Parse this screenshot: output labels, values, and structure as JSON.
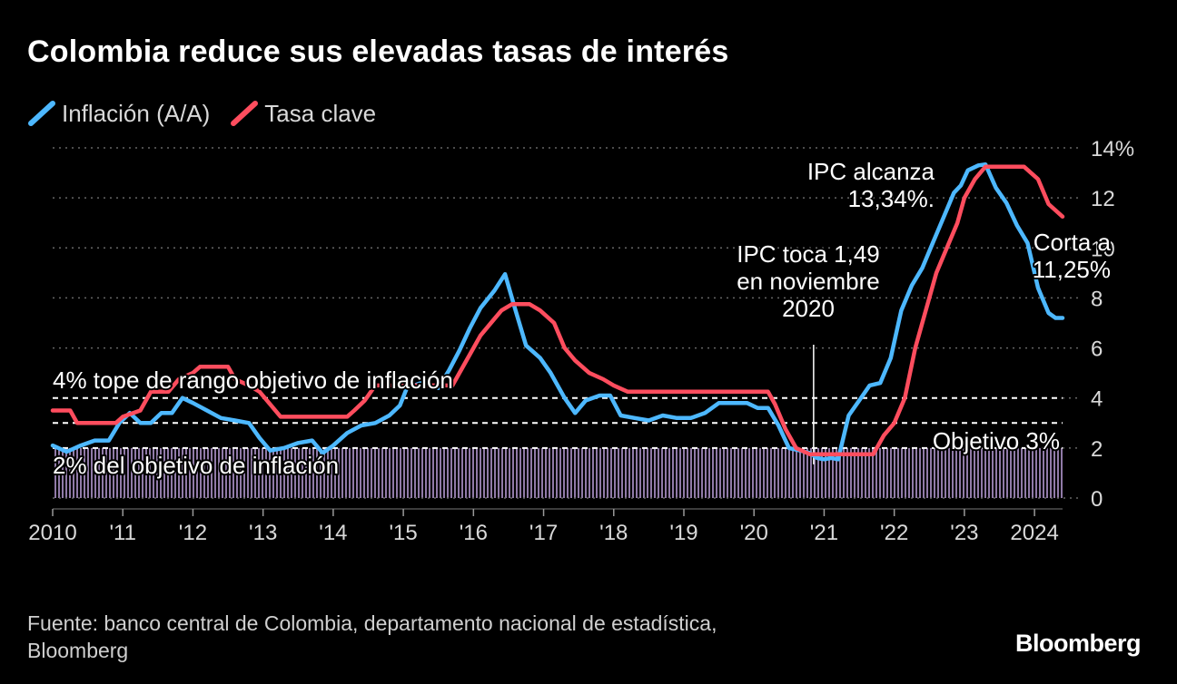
{
  "title": "Colombia reduce sus elevadas tasas de interés",
  "legend": [
    {
      "label": "Inflación (A/A)",
      "color": "#4db8ff"
    },
    {
      "label": "Tasa clave",
      "color": "#ff4d5e"
    }
  ],
  "source_line1": "Fuente: banco central de Colombia, departamento nacional de estadística,",
  "source_line2": "Bloomberg",
  "brand": "Bloomberg",
  "chart_data": {
    "type": "line",
    "title": "Colombia reduce sus elevadas tasas de interés",
    "xlabel": "",
    "ylabel": "",
    "ylim": [
      0,
      14
    ],
    "xlim": [
      2010.0,
      2024.4
    ],
    "y_ticks": [
      0,
      2,
      4,
      6,
      8,
      10,
      12,
      14
    ],
    "y_tick_labels": [
      "0",
      "2",
      "4",
      "6",
      "8",
      "10",
      "12",
      "14%"
    ],
    "x_ticks": [
      2010,
      2011,
      2012,
      2013,
      2014,
      2015,
      2016,
      2017,
      2018,
      2019,
      2020,
      2021,
      2022,
      2023,
      2024
    ],
    "x_tick_labels": [
      "2010",
      "'11",
      "'12",
      "'13",
      "'14",
      "'15",
      "'16",
      "'17",
      "'18",
      "'19",
      "'20",
      "'21",
      "'22",
      "'23",
      "2024"
    ],
    "grid": true,
    "legend_position": "top-left",
    "target_band": [
      2,
      4
    ],
    "target_center": 3,
    "series": [
      {
        "name": "Inflación (A/A)",
        "color": "#4db8ff",
        "points": [
          [
            2010.0,
            2.1
          ],
          [
            2010.2,
            1.85
          ],
          [
            2010.4,
            2.1
          ],
          [
            2010.6,
            2.3
          ],
          [
            2010.8,
            2.3
          ],
          [
            2010.95,
            3.0
          ],
          [
            2011.1,
            3.4
          ],
          [
            2011.25,
            3.0
          ],
          [
            2011.4,
            3.0
          ],
          [
            2011.55,
            3.4
          ],
          [
            2011.7,
            3.4
          ],
          [
            2011.85,
            4.0
          ],
          [
            2012.0,
            3.8
          ],
          [
            2012.2,
            3.5
          ],
          [
            2012.4,
            3.2
          ],
          [
            2012.6,
            3.1
          ],
          [
            2012.8,
            3.0
          ],
          [
            2012.95,
            2.4
          ],
          [
            2013.1,
            1.9
          ],
          [
            2013.3,
            2.0
          ],
          [
            2013.5,
            2.2
          ],
          [
            2013.7,
            2.3
          ],
          [
            2013.85,
            1.8
          ],
          [
            2014.0,
            2.1
          ],
          [
            2014.2,
            2.6
          ],
          [
            2014.4,
            2.9
          ],
          [
            2014.6,
            3.0
          ],
          [
            2014.8,
            3.3
          ],
          [
            2014.95,
            3.7
          ],
          [
            2015.05,
            4.4
          ],
          [
            2015.25,
            4.6
          ],
          [
            2015.5,
            4.4
          ],
          [
            2015.65,
            5.1
          ],
          [
            2015.8,
            5.9
          ],
          [
            2015.95,
            6.8
          ],
          [
            2016.1,
            7.6
          ],
          [
            2016.3,
            8.3
          ],
          [
            2016.45,
            8.95
          ],
          [
            2016.6,
            7.5
          ],
          [
            2016.75,
            6.1
          ],
          [
            2016.95,
            5.6
          ],
          [
            2017.1,
            5.0
          ],
          [
            2017.3,
            4.0
          ],
          [
            2017.45,
            3.4
          ],
          [
            2017.6,
            3.9
          ],
          [
            2017.8,
            4.1
          ],
          [
            2017.95,
            4.1
          ],
          [
            2018.1,
            3.3
          ],
          [
            2018.3,
            3.2
          ],
          [
            2018.5,
            3.1
          ],
          [
            2018.7,
            3.3
          ],
          [
            2018.9,
            3.2
          ],
          [
            2019.1,
            3.2
          ],
          [
            2019.3,
            3.4
          ],
          [
            2019.5,
            3.8
          ],
          [
            2019.7,
            3.8
          ],
          [
            2019.9,
            3.8
          ],
          [
            2020.05,
            3.6
          ],
          [
            2020.2,
            3.6
          ],
          [
            2020.35,
            2.9
          ],
          [
            2020.5,
            2.0
          ],
          [
            2020.65,
            1.9
          ],
          [
            2020.8,
            1.8
          ],
          [
            2020.9,
            1.6
          ],
          [
            2021.0,
            1.55
          ],
          [
            2021.1,
            1.6
          ],
          [
            2021.2,
            1.55
          ],
          [
            2021.35,
            3.3
          ],
          [
            2021.5,
            3.9
          ],
          [
            2021.65,
            4.5
          ],
          [
            2021.8,
            4.6
          ],
          [
            2021.95,
            5.6
          ],
          [
            2022.1,
            7.5
          ],
          [
            2022.25,
            8.5
          ],
          [
            2022.4,
            9.2
          ],
          [
            2022.55,
            10.2
          ],
          [
            2022.7,
            11.2
          ],
          [
            2022.85,
            12.2
          ],
          [
            2022.95,
            12.5
          ],
          [
            2023.05,
            13.1
          ],
          [
            2023.2,
            13.3
          ],
          [
            2023.3,
            13.34
          ],
          [
            2023.45,
            12.4
          ],
          [
            2023.6,
            11.8
          ],
          [
            2023.75,
            10.9
          ],
          [
            2023.9,
            10.2
          ],
          [
            2024.05,
            8.4
          ],
          [
            2024.2,
            7.4
          ],
          [
            2024.3,
            7.2
          ],
          [
            2024.4,
            7.2
          ]
        ]
      },
      {
        "name": "Tasa clave",
        "color": "#ff4d5e",
        "points": [
          [
            2010.0,
            3.5
          ],
          [
            2010.25,
            3.5
          ],
          [
            2010.35,
            3.0
          ],
          [
            2010.9,
            3.0
          ],
          [
            2011.0,
            3.25
          ],
          [
            2011.25,
            3.5
          ],
          [
            2011.4,
            4.25
          ],
          [
            2011.65,
            4.25
          ],
          [
            2011.8,
            4.75
          ],
          [
            2012.0,
            5.0
          ],
          [
            2012.1,
            5.25
          ],
          [
            2012.5,
            5.25
          ],
          [
            2012.6,
            4.75
          ],
          [
            2012.8,
            4.5
          ],
          [
            2012.95,
            4.25
          ],
          [
            2013.1,
            3.75
          ],
          [
            2013.25,
            3.25
          ],
          [
            2014.2,
            3.25
          ],
          [
            2014.3,
            3.5
          ],
          [
            2014.45,
            3.9
          ],
          [
            2014.6,
            4.5
          ],
          [
            2014.8,
            4.5
          ],
          [
            2015.7,
            4.5
          ],
          [
            2015.8,
            5.0
          ],
          [
            2015.95,
            5.75
          ],
          [
            2016.1,
            6.5
          ],
          [
            2016.25,
            7.0
          ],
          [
            2016.4,
            7.5
          ],
          [
            2016.55,
            7.75
          ],
          [
            2016.8,
            7.75
          ],
          [
            2016.95,
            7.5
          ],
          [
            2017.15,
            7.0
          ],
          [
            2017.3,
            6.0
          ],
          [
            2017.45,
            5.5
          ],
          [
            2017.65,
            5.0
          ],
          [
            2017.85,
            4.75
          ],
          [
            2018.0,
            4.5
          ],
          [
            2018.2,
            4.25
          ],
          [
            2020.2,
            4.25
          ],
          [
            2020.3,
            3.75
          ],
          [
            2020.45,
            2.75
          ],
          [
            2020.6,
            2.0
          ],
          [
            2020.8,
            1.75
          ],
          [
            2021.7,
            1.75
          ],
          [
            2021.85,
            2.5
          ],
          [
            2022.0,
            3.0
          ],
          [
            2022.15,
            4.0
          ],
          [
            2022.3,
            6.0
          ],
          [
            2022.45,
            7.5
          ],
          [
            2022.6,
            9.0
          ],
          [
            2022.75,
            10.0
          ],
          [
            2022.9,
            11.0
          ],
          [
            2023.0,
            12.0
          ],
          [
            2023.15,
            12.75
          ],
          [
            2023.3,
            13.25
          ],
          [
            2023.85,
            13.25
          ],
          [
            2023.95,
            13.0
          ],
          [
            2024.05,
            12.75
          ],
          [
            2024.2,
            11.75
          ],
          [
            2024.4,
            11.25
          ]
        ]
      }
    ],
    "annotations": [
      {
        "lines": [
          "IPC alcanza",
          "13,34%."
        ],
        "x": 2023.0,
        "y": 13.34
      },
      {
        "lines": [
          "Corta a",
          "11,25%"
        ],
        "x": 2024.4,
        "y": 11.25
      },
      {
        "lines": [
          "IPC toca 1,49",
          "en noviembre",
          "2020"
        ],
        "x": 2020.85,
        "y": 1.49
      },
      {
        "lines": [
          "4% tope de rango objetivo de inflación"
        ],
        "x": 2010.0,
        "y": 4.0
      },
      {
        "lines": [
          "Objetivo 3%"
        ],
        "x": 2024.4,
        "y": 3.0
      },
      {
        "lines": [
          "2% del objetivo de inflación"
        ],
        "x": 2010.0,
        "y": 2.0
      }
    ]
  }
}
